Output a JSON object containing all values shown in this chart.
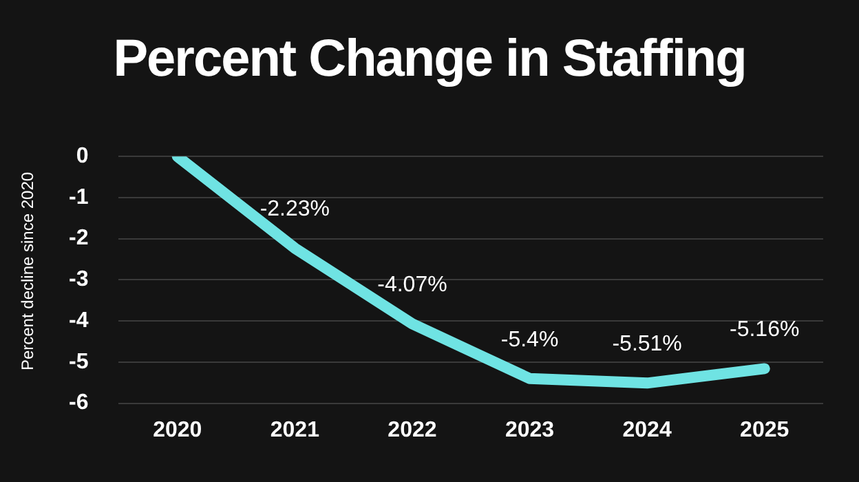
{
  "chart_data": {
    "type": "line",
    "title": "Percent Change in Staffing",
    "ylabel": "Percent decline since 2020",
    "categories": [
      "2020",
      "2021",
      "2022",
      "2023",
      "2024",
      "2025"
    ],
    "series": [
      {
        "color": "#6fe3e3",
        "values": [
          0,
          -2.23,
          -4.07,
          -5.4,
          -5.51,
          -5.16
        ],
        "value_labels": [
          null,
          "-2.23%",
          "-4.07%",
          "-5.4%",
          "-5.51%",
          "-5.16%"
        ]
      }
    ],
    "ylim": [
      -6,
      0
    ],
    "yticks": [
      0,
      -1,
      -2,
      -3,
      -4,
      -5,
      -6
    ],
    "grid": "y",
    "legend": false,
    "marker": "none",
    "line_style": "solid"
  }
}
